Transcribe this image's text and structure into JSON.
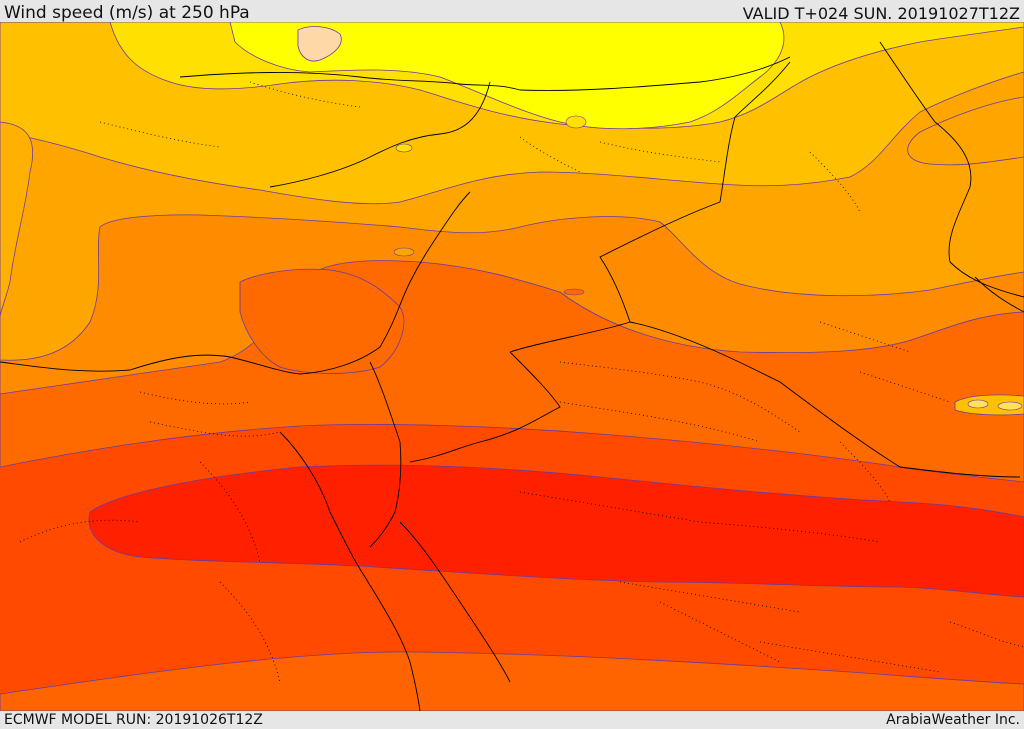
{
  "header": {
    "title": "Wind speed (m/s) at 250 hPa",
    "valid": "VALID T+024 SUN. 20191027T12Z"
  },
  "footer": {
    "model_run": "ECMWF MODEL RUN: 20191026T12Z",
    "credit": "ArabiaWeather Inc."
  },
  "colors": {
    "band_light_yellow": "#ffff00",
    "band_yellow": "#ffe000",
    "band_gold": "#ffc000",
    "band_light_orange": "#ffa500",
    "band_orange": "#ff8c00",
    "band_dark_orange": "#ff6a00",
    "band_red_orange": "#ff4500",
    "band_red": "#ff2000",
    "peach_patch": "#ffd8a8",
    "contour_line": "#6a3aa0",
    "border_line": "#000000"
  }
}
